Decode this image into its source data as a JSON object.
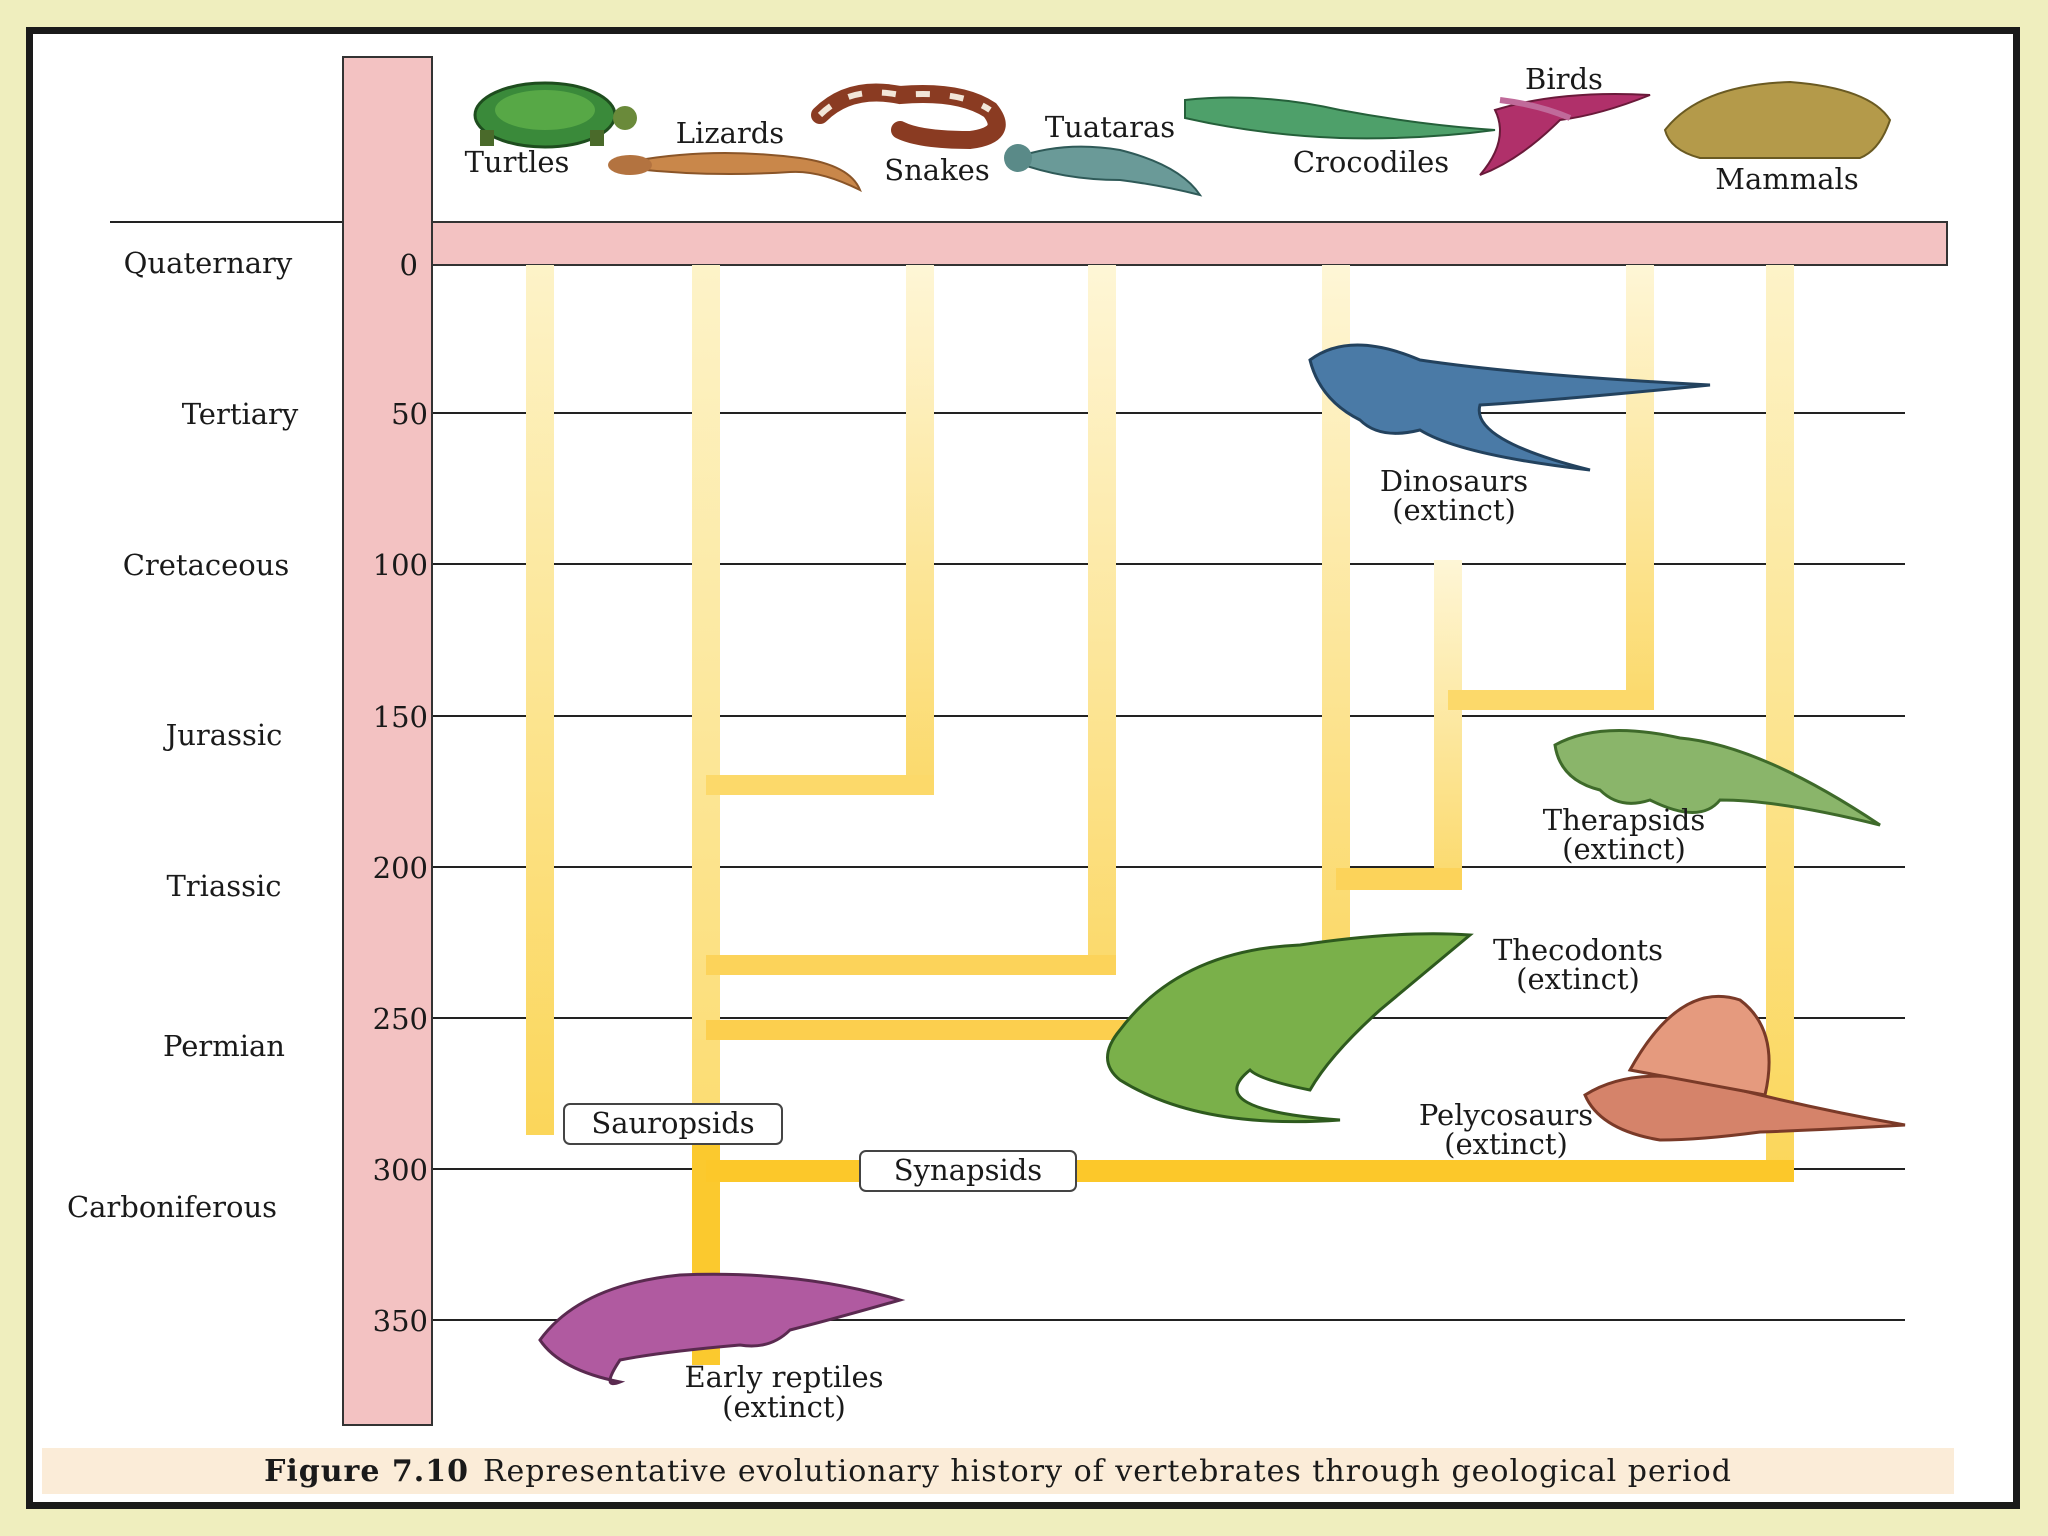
{
  "time_axis": {
    "ticks": [
      "0",
      "50",
      "100",
      "150",
      "200",
      "250",
      "300",
      "350"
    ],
    "periods": [
      "Quaternary",
      "Tertiary",
      "Cretaceous",
      "Jurassic",
      "Triassic",
      "Permian",
      "Carboniferous"
    ]
  },
  "groups": {
    "turtles": "Turtles",
    "lizards": "Lizards",
    "snakes": "Snakes",
    "tuataras": "Tuataras",
    "crocodiles": "Crocodiles",
    "birds": "Birds",
    "mammals": "Mammals"
  },
  "extinct_groups": {
    "dinosaurs": [
      "Dinosaurs",
      "(extinct)"
    ],
    "therapsids": [
      "Therapsids",
      "(extinct)"
    ],
    "thecodonts": [
      "Thecodonts",
      "(extinct)"
    ],
    "pelycosaurs": [
      "Pelycosaurs",
      "(extinct)"
    ],
    "early_reptiles": [
      "Early reptiles",
      "(extinct)"
    ]
  },
  "clades": {
    "sauropsids": "Sauropsids",
    "synapsids": "Synapsids"
  },
  "caption": {
    "label": "Figure 7.10",
    "text": "Representative evolutionary history of vertebrates through geological period"
  },
  "colors": {
    "timeline": "#f3c2c2",
    "branch": "#fbd65a",
    "branch_fade": "#fdf3c8"
  }
}
